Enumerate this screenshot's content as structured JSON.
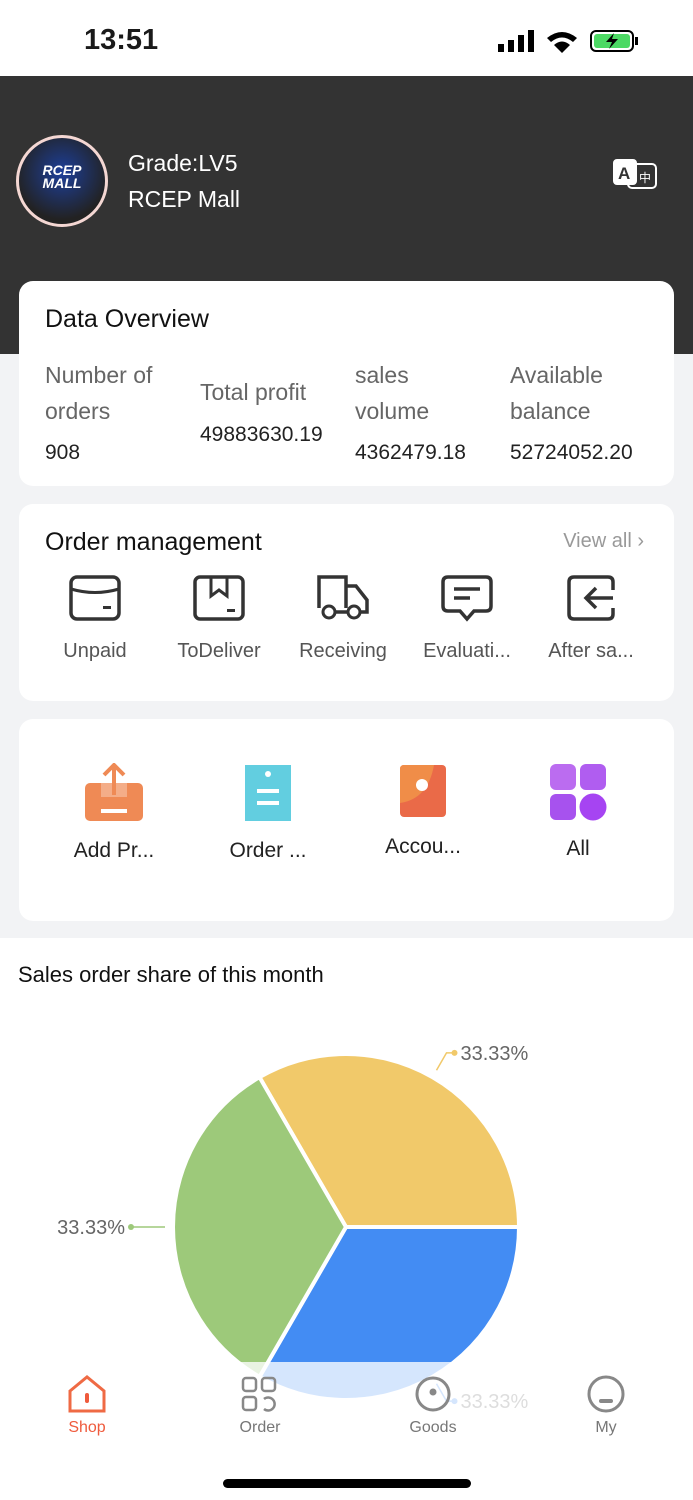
{
  "status": {
    "time": "13:51"
  },
  "header": {
    "grade": "Grade:LV5",
    "shop_name": "RCEP Mall",
    "avatar_text": "RCEP MALL"
  },
  "overview": {
    "title": "Data Overview",
    "items": [
      {
        "label1": "Number of",
        "label2": "orders",
        "value": "908"
      },
      {
        "label1": "Total profit",
        "label2": "",
        "value": "49883630.19"
      },
      {
        "label1": "sales",
        "label2": "volume",
        "value": "4362479.18"
      },
      {
        "label1": "Available",
        "label2": "balance",
        "value": "52724052.20"
      }
    ]
  },
  "orders": {
    "title": "Order management",
    "view_all": "View all",
    "items": [
      {
        "label": "Unpaid",
        "icon": "wallet-icon"
      },
      {
        "label": "ToDeliver",
        "icon": "box-icon"
      },
      {
        "label": "Receiving",
        "icon": "truck-icon"
      },
      {
        "label": "Evaluati...",
        "icon": "comment-icon"
      },
      {
        "label": "After sa...",
        "icon": "return-icon"
      }
    ]
  },
  "quick": {
    "items": [
      {
        "label": "Add Pr...",
        "icon": "upload-icon"
      },
      {
        "label": "Order ...",
        "icon": "clipboard-icon"
      },
      {
        "label": "Accou...",
        "icon": "account-icon"
      },
      {
        "label": "All",
        "icon": "grid-icon"
      }
    ]
  },
  "chart_section": {
    "title": "Sales order share of this month"
  },
  "chart_data": {
    "type": "pie",
    "values": [
      33.33,
      33.33,
      33.33
    ],
    "labels": [
      "33.33%",
      "33.33%",
      "33.33%"
    ],
    "colors": [
      "#f1c96a",
      "#438cf3",
      "#9dc97a"
    ]
  },
  "tabbar": {
    "items": [
      {
        "label": "Shop",
        "active": true
      },
      {
        "label": "Order"
      },
      {
        "label": "Goods"
      },
      {
        "label": "My"
      }
    ],
    "active_color": "#ef5a3c"
  }
}
